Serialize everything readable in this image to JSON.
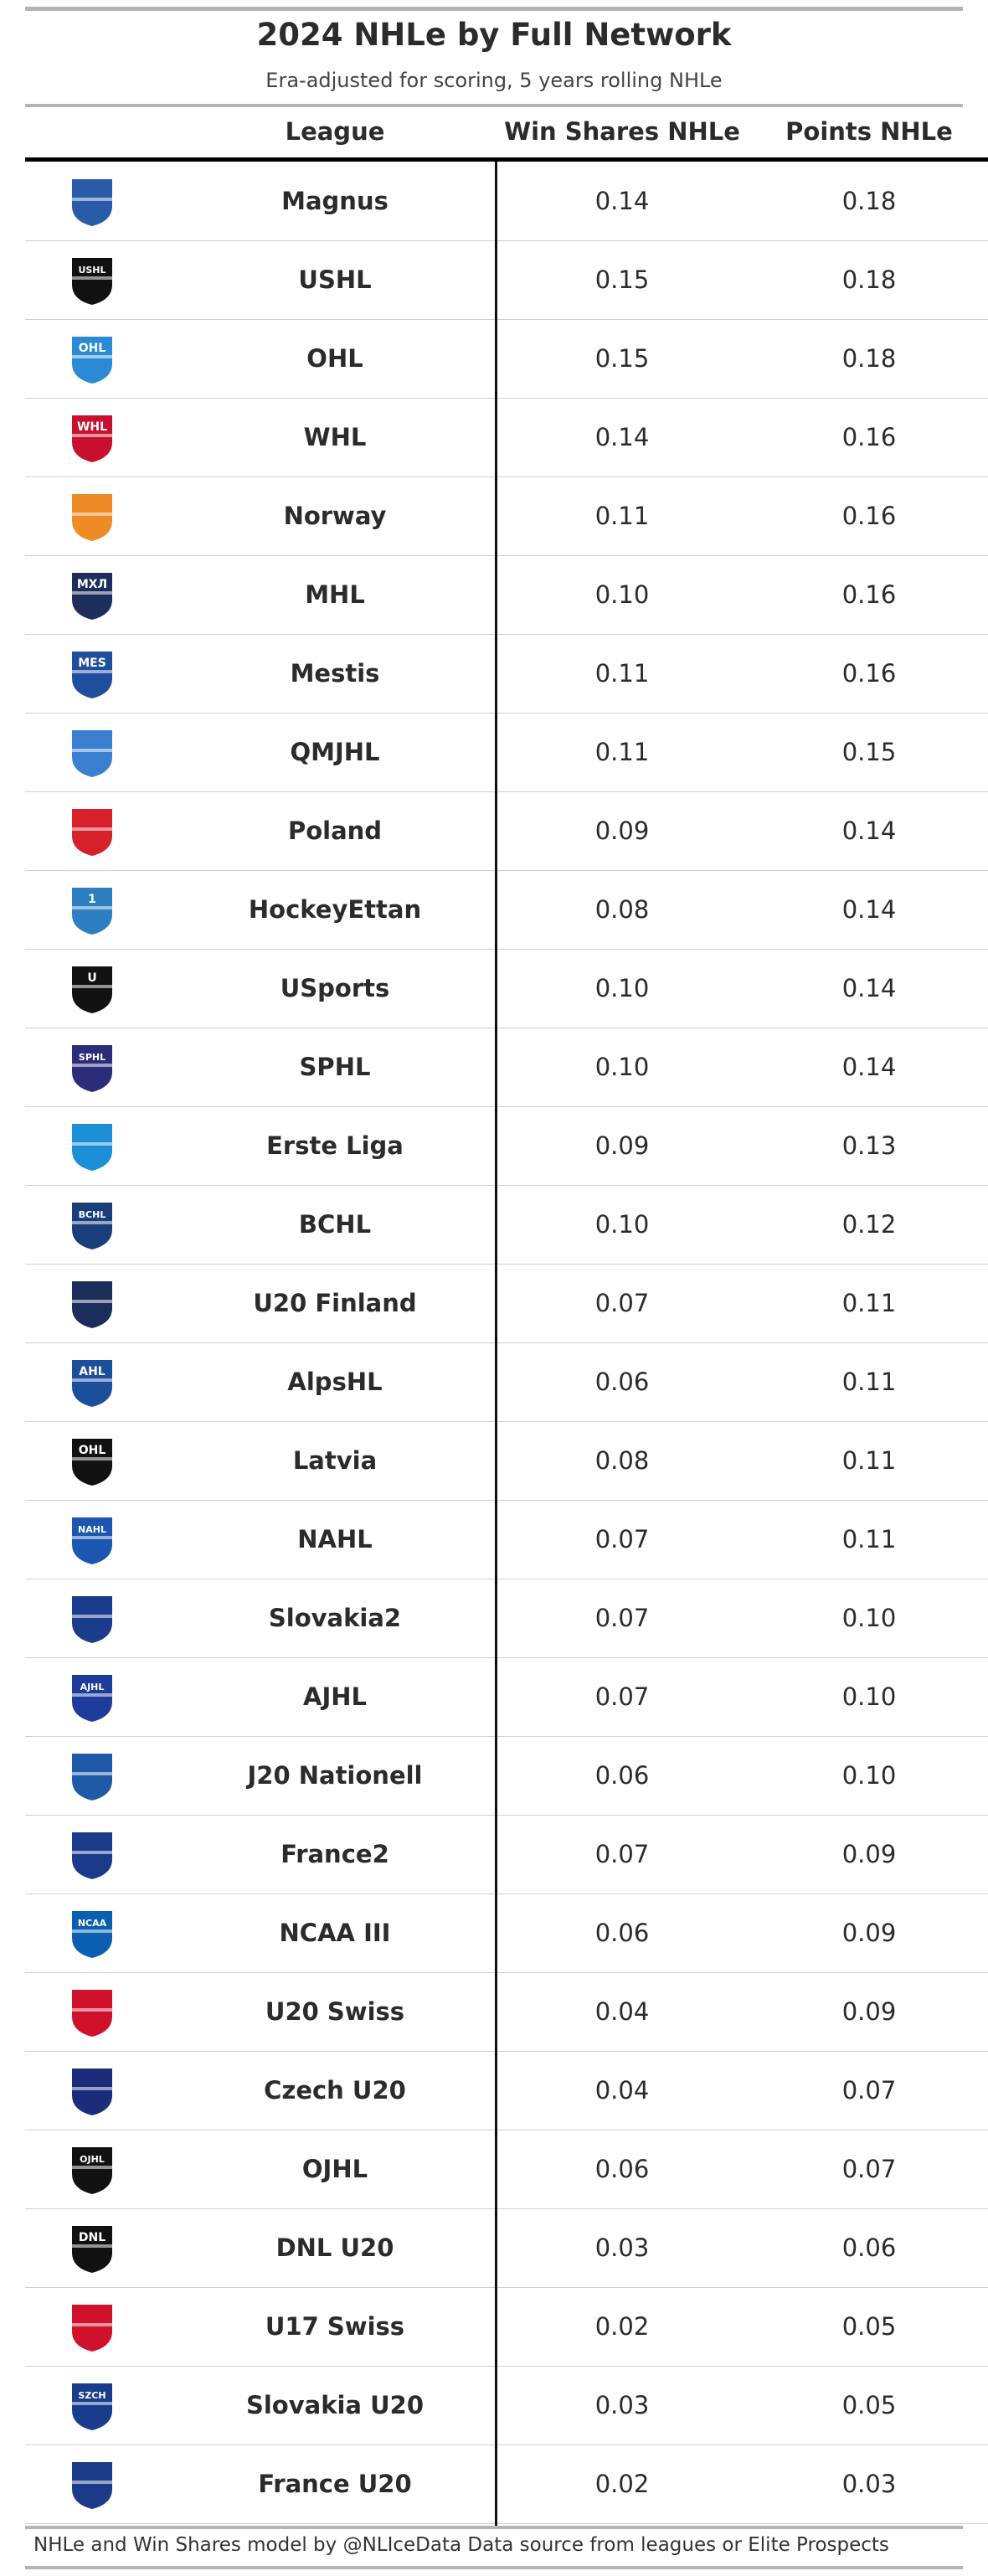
{
  "title": "2024 NHLe by Full Network",
  "subtitle": "Era-adjusted for scoring, 5 years rolling NHLe",
  "columns": {
    "league": "League",
    "win_shares": "Win Shares NHLe",
    "points": "Points NHLe"
  },
  "footer": "NHLe and Win Shares model by @NLIceData Data source from leagues or Elite Prospects",
  "chart_data": {
    "type": "table",
    "title": "2024 NHLe by Full Network",
    "subtitle": "Era-adjusted for scoring, 5 years rolling NHLe",
    "headers": [
      "League",
      "Win Shares NHLe",
      "Points NHLe"
    ],
    "rows": [
      {
        "league": "Magnus",
        "ws": "0.14",
        "pts": "0.18",
        "logo": "magnus-logo",
        "logo_text": "",
        "color": "#2a5ba8"
      },
      {
        "league": "USHL",
        "ws": "0.15",
        "pts": "0.18",
        "logo": "ushl-logo",
        "logo_text": "USHL",
        "color": "#111111"
      },
      {
        "league": "OHL",
        "ws": "0.15",
        "pts": "0.18",
        "logo": "ohl-logo",
        "logo_text": "OHL",
        "color": "#2a8ad4"
      },
      {
        "league": "WHL",
        "ws": "0.14",
        "pts": "0.16",
        "logo": "whl-logo",
        "logo_text": "WHL",
        "color": "#c8102e"
      },
      {
        "league": "Norway",
        "ws": "0.11",
        "pts": "0.16",
        "logo": "norway-logo",
        "logo_text": "",
        "color": "#f08a24"
      },
      {
        "league": "MHL",
        "ws": "0.10",
        "pts": "0.16",
        "logo": "mhl-logo",
        "logo_text": "МХЛ",
        "color": "#1d2d5c"
      },
      {
        "league": "Mestis",
        "ws": "0.11",
        "pts": "0.16",
        "logo": "mestis-logo",
        "logo_text": "MES",
        "color": "#1f4e9c"
      },
      {
        "league": "QMJHL",
        "ws": "0.11",
        "pts": "0.15",
        "logo": "qmjhl-logo",
        "logo_text": "",
        "color": "#3a7fd0"
      },
      {
        "league": "Poland",
        "ws": "0.09",
        "pts": "0.14",
        "logo": "poland-logo",
        "logo_text": "",
        "color": "#d6202a"
      },
      {
        "league": "HockeyEttan",
        "ws": "0.08",
        "pts": "0.14",
        "logo": "hockeyettan-logo",
        "logo_text": "1",
        "color": "#2d7fc1"
      },
      {
        "league": "USports",
        "ws": "0.10",
        "pts": "0.14",
        "logo": "usports-logo",
        "logo_text": "U",
        "color": "#111111"
      },
      {
        "league": "SPHL",
        "ws": "0.10",
        "pts": "0.14",
        "logo": "sphl-logo",
        "logo_text": "SPHL",
        "color": "#2b2d7a"
      },
      {
        "league": "Erste Liga",
        "ws": "0.09",
        "pts": "0.13",
        "logo": "erste-liga-logo",
        "logo_text": "",
        "color": "#1d8fd6"
      },
      {
        "league": "BCHL",
        "ws": "0.10",
        "pts": "0.12",
        "logo": "bchl-logo",
        "logo_text": "BCHL",
        "color": "#1a3e7a"
      },
      {
        "league": "U20 Finland",
        "ws": "0.07",
        "pts": "0.11",
        "logo": "u20-finland-logo",
        "logo_text": "",
        "color": "#1b2d5a"
      },
      {
        "league": "AlpsHL",
        "ws": "0.06",
        "pts": "0.11",
        "logo": "alpshl-logo",
        "logo_text": "AHL",
        "color": "#1b4f9c"
      },
      {
        "league": "Latvia",
        "ws": "0.08",
        "pts": "0.11",
        "logo": "latvia-logo",
        "logo_text": "OHL",
        "color": "#111111"
      },
      {
        "league": "NAHL",
        "ws": "0.07",
        "pts": "0.11",
        "logo": "nahl-logo",
        "logo_text": "NAHL",
        "color": "#1b56b0"
      },
      {
        "league": "Slovakia2",
        "ws": "0.07",
        "pts": "0.10",
        "logo": "slovakia2-logo",
        "logo_text": "",
        "color": "#1a3c8c"
      },
      {
        "league": "AJHL",
        "ws": "0.07",
        "pts": "0.10",
        "logo": "ajhl-logo",
        "logo_text": "AJHL",
        "color": "#1d3c9c"
      },
      {
        "league": "J20 Nationell",
        "ws": "0.06",
        "pts": "0.10",
        "logo": "j20-nationell-logo",
        "logo_text": "",
        "color": "#1e5aa8"
      },
      {
        "league": "France2",
        "ws": "0.07",
        "pts": "0.09",
        "logo": "france2-logo",
        "logo_text": "",
        "color": "#1b3a8a"
      },
      {
        "league": "NCAA III",
        "ws": "0.06",
        "pts": "0.09",
        "logo": "ncaa-logo",
        "logo_text": "NCAA",
        "color": "#0a5fb0"
      },
      {
        "league": "U20 Swiss",
        "ws": "0.04",
        "pts": "0.09",
        "logo": "u20-swiss-logo",
        "logo_text": "",
        "color": "#d0112b"
      },
      {
        "league": "Czech U20",
        "ws": "0.04",
        "pts": "0.07",
        "logo": "czech-u20-logo",
        "logo_text": "",
        "color": "#1b2d7a"
      },
      {
        "league": "OJHL",
        "ws": "0.06",
        "pts": "0.07",
        "logo": "ojhl-logo",
        "logo_text": "OJHL",
        "color": "#111111"
      },
      {
        "league": "DNL U20",
        "ws": "0.03",
        "pts": "0.06",
        "logo": "dnl-logo",
        "logo_text": "DNL",
        "color": "#111111"
      },
      {
        "league": "U17 Swiss",
        "ws": "0.02",
        "pts": "0.05",
        "logo": "u17-swiss-logo",
        "logo_text": "",
        "color": "#d0112b"
      },
      {
        "league": "Slovakia U20",
        "ws": "0.03",
        "pts": "0.05",
        "logo": "slovakia-u20-logo",
        "logo_text": "SZCH",
        "color": "#1a3c8c"
      },
      {
        "league": "France U20",
        "ws": "0.02",
        "pts": "0.03",
        "logo": "france-u20-logo",
        "logo_text": "",
        "color": "#1b3a8a"
      }
    ]
  }
}
